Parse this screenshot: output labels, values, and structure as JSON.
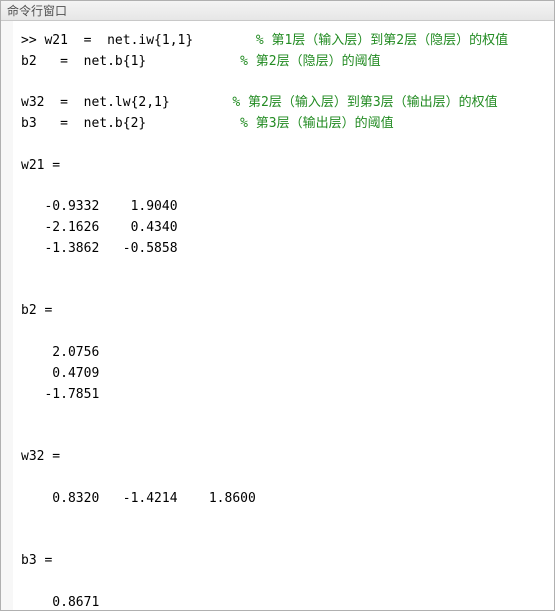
{
  "window": {
    "title": "命令行窗口"
  },
  "colors": {
    "comment": "#228b22",
    "code": "#000000",
    "titlebar_text": "#505050",
    "titlebar_bg_top": "#f4f4f4",
    "titlebar_bg_bottom": "#e6e6e6",
    "border": "#b0b0b0",
    "gutter": "#f7f7f7",
    "background": "#ffffff"
  },
  "font": {
    "family": "SimSun / Consolas",
    "size_pt": 10,
    "line_height": 1.6
  },
  "command_lines": [
    {
      "prompt": ">> ",
      "lhs": "w21",
      "eq": "  =  ",
      "rhs": "net.iw{1,1}",
      "pad": "        ",
      "comment": "% 第1层（输入层）到第2层（隐层）的权值"
    },
    {
      "prompt": "",
      "lhs": "b2",
      "eq": "   =  ",
      "rhs": "net.b{1}",
      "pad": "            ",
      "comment": "% 第2层（隐层）的阈值"
    },
    {
      "blank": true
    },
    {
      "prompt": "",
      "lhs": "w32",
      "eq": "  =  ",
      "rhs": "net.lw{2,1}",
      "pad": "        ",
      "comment": "% 第2层（输入层）到第3层（输出层）的权值"
    },
    {
      "prompt": "",
      "lhs": "b3",
      "eq": "   =  ",
      "rhs": "net.b{2}",
      "pad": "            ",
      "comment": "% 第3层（输出层）的阈值"
    }
  ],
  "outputs": [
    {
      "name": "w21",
      "rows": [
        [
          "-0.9332",
          " 1.9040"
        ],
        [
          "-2.1626",
          " 0.4340"
        ],
        [
          "-1.3862",
          "-0.5858"
        ]
      ],
      "col_pad": "   ",
      "indent": "   "
    },
    {
      "name": "b2",
      "rows": [
        [
          " 2.0756"
        ],
        [
          " 0.4709"
        ],
        [
          "-1.7851"
        ]
      ],
      "col_pad": "",
      "indent": "   "
    },
    {
      "name": "w32",
      "rows": [
        [
          " 0.8320",
          "-1.4214",
          " 1.8600"
        ]
      ],
      "col_pad": "   ",
      "indent": "   "
    },
    {
      "name": "b3",
      "rows": [
        [
          " 0.8671"
        ]
      ],
      "col_pad": "",
      "indent": "   "
    }
  ]
}
